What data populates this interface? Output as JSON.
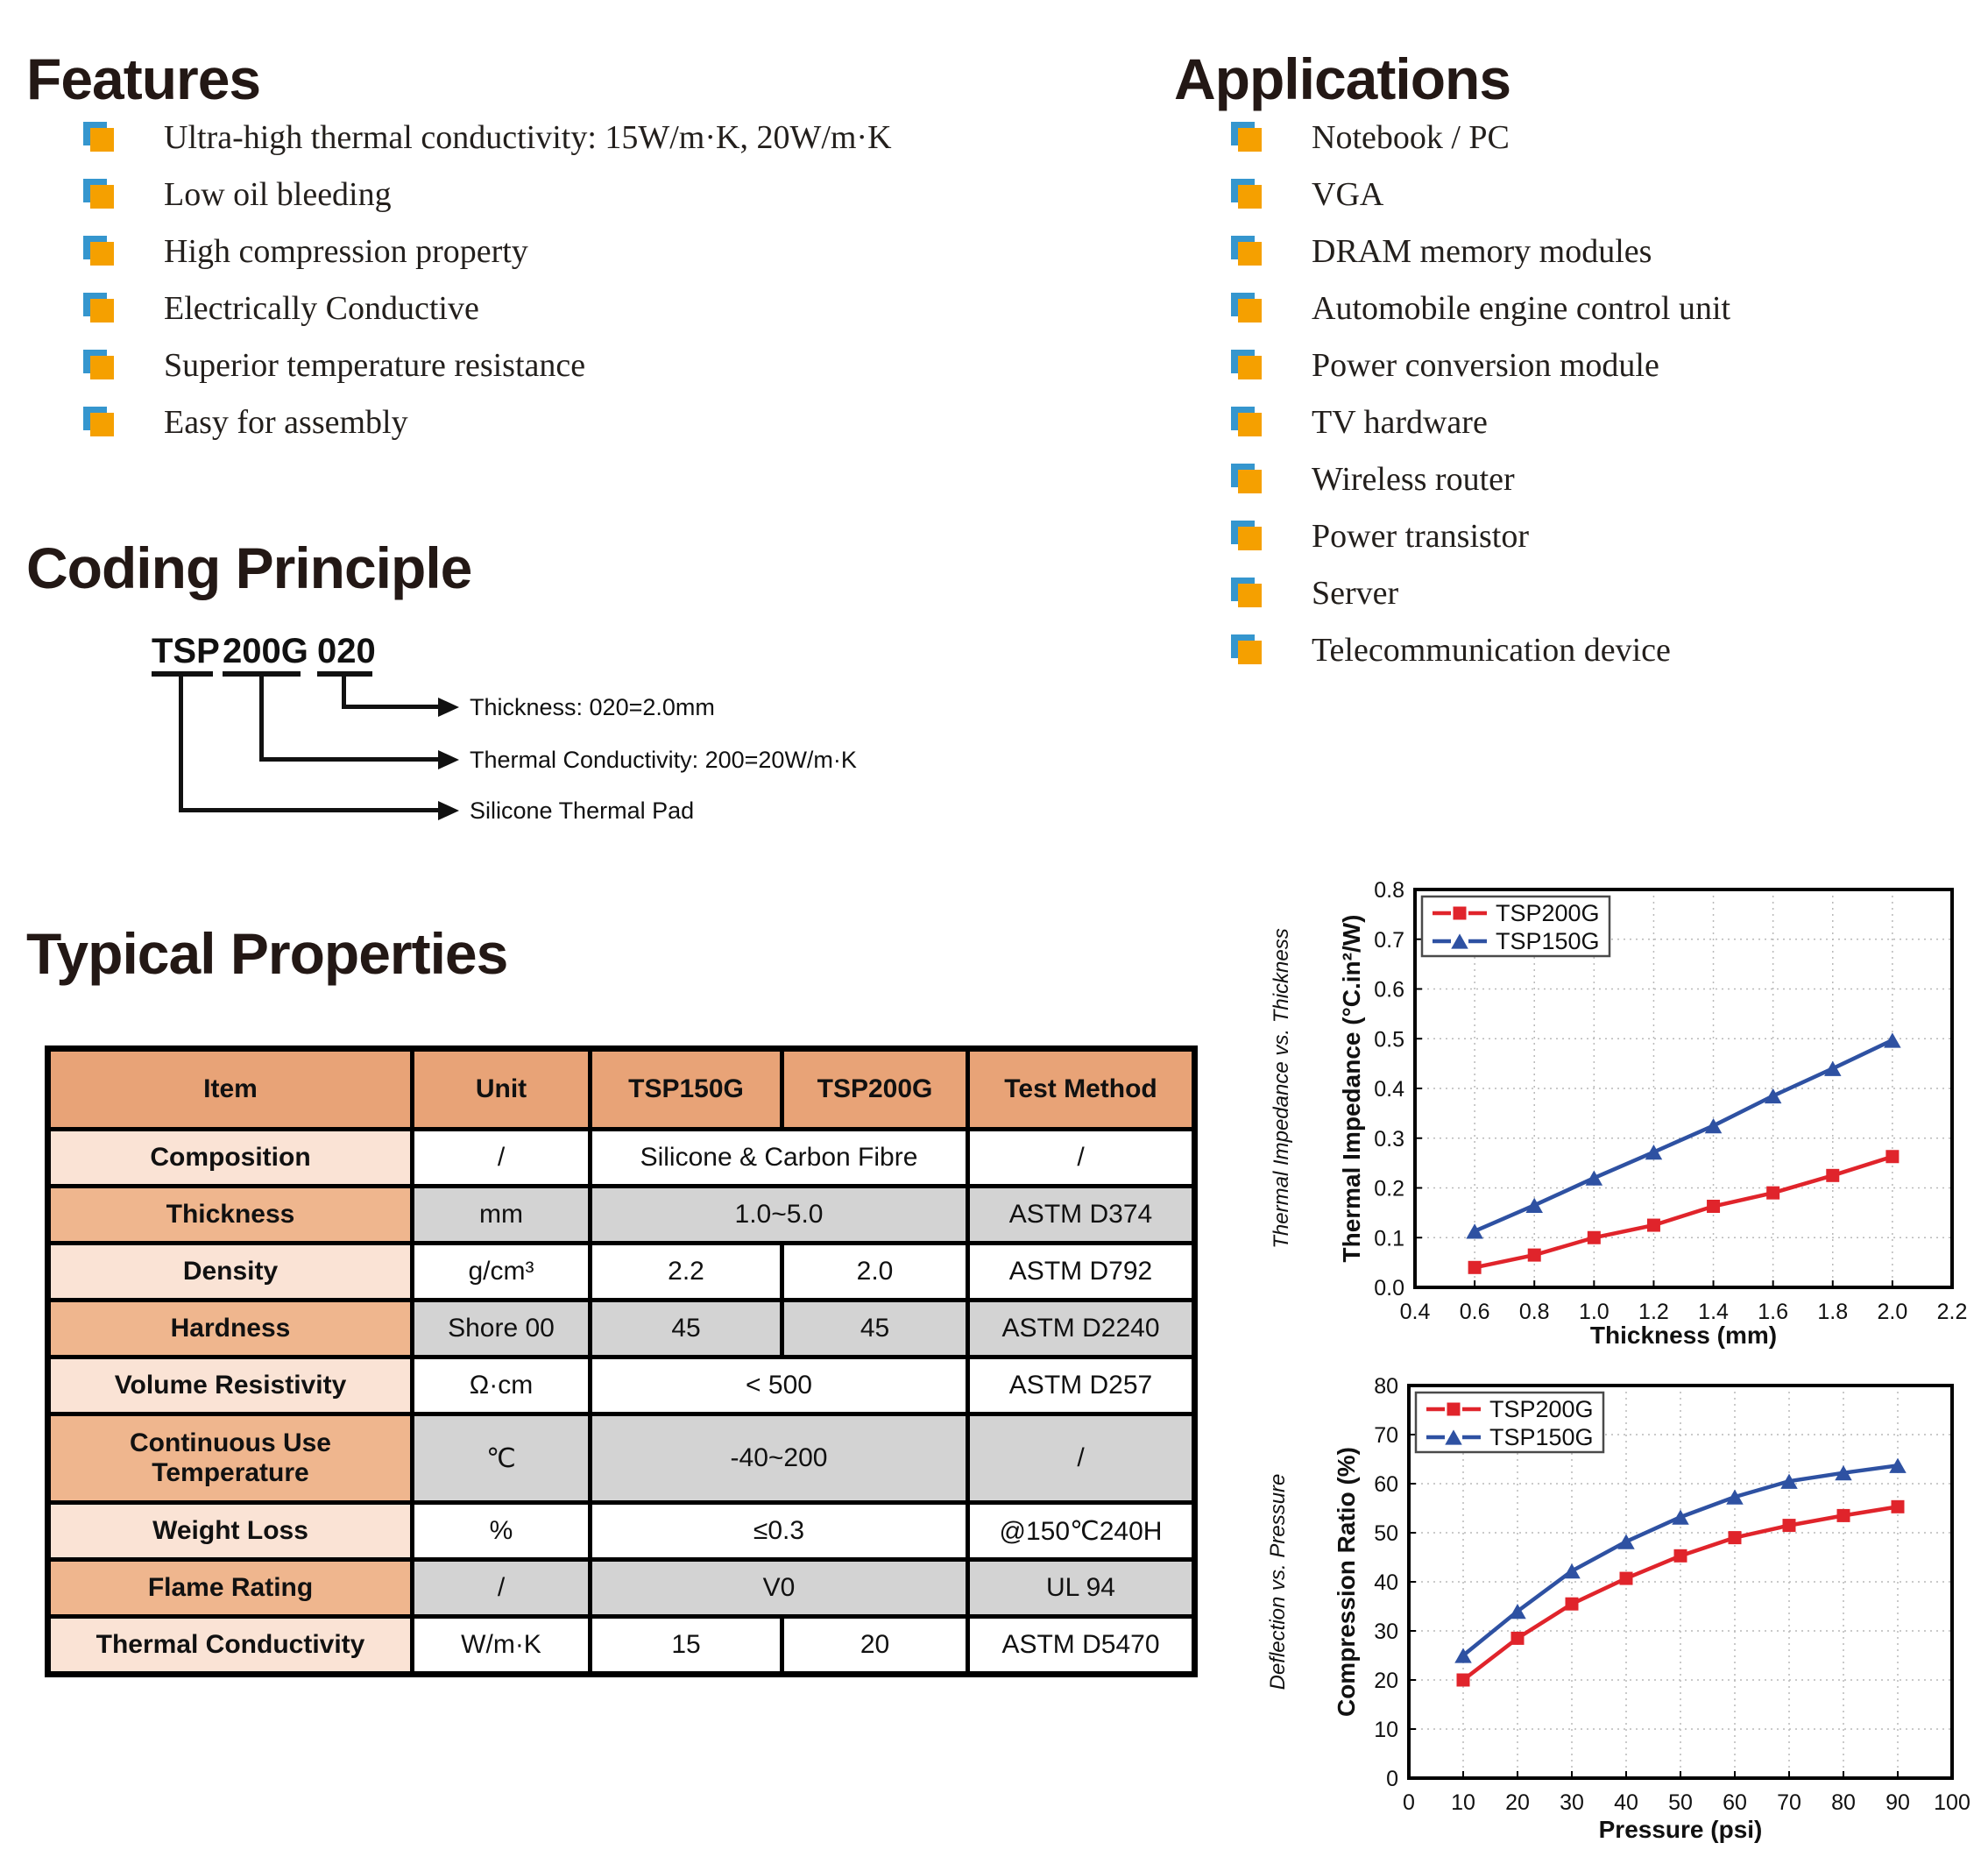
{
  "features": {
    "title": "Features",
    "items": [
      "Ultra-high thermal conductivity: 15W/m·K, 20W/m·K",
      "Low oil bleeding",
      "High compression property",
      "Electrically Conductive",
      "Superior temperature resistance",
      "Easy for assembly"
    ]
  },
  "applications": {
    "title": "Applications",
    "items": [
      "Notebook / PC",
      "VGA",
      "DRAM memory modules",
      "Automobile engine control unit",
      "Power conversion module",
      "TV hardware",
      "Wireless router",
      "Power transistor",
      "Server",
      "Telecommunication device"
    ]
  },
  "coding": {
    "title": "Coding Principle",
    "code_parts": [
      "TSP",
      "200G",
      "020"
    ],
    "labels": [
      "Silicone Thermal Pad",
      "Thermal Conductivity: 200=20W/m·K",
      "Thickness: 020=2.0mm"
    ]
  },
  "properties": {
    "title": "Typical Properties",
    "table": {
      "headers": [
        "Item",
        "Unit",
        "TSP150G",
        "TSP200G",
        "Test Method"
      ],
      "rows": [
        {
          "item": "Composition",
          "unit": "/",
          "span": "Silicone & Carbon Fibre",
          "method": "/",
          "shade": "pink"
        },
        {
          "item": "Thickness",
          "unit": "mm",
          "span": "1.0~5.0",
          "method": "ASTM D374",
          "shade": "orange"
        },
        {
          "item": "Density",
          "unit": "g/cm³",
          "tsp150g": "2.2",
          "tsp200g": "2.0",
          "method": "ASTM D792",
          "shade": "pink"
        },
        {
          "item": "Hardness",
          "unit": "Shore 00",
          "tsp150g": "45",
          "tsp200g": "45",
          "method": "ASTM D2240",
          "shade": "orange"
        },
        {
          "item": "Volume Resistivity",
          "unit": "Ω·cm",
          "span": "< 500",
          "method": "ASTM D257",
          "shade": "pink"
        },
        {
          "item": "Continuous Use Temperature",
          "unit": "℃",
          "span": "-40~200",
          "method": "/",
          "shade": "orange",
          "tall": true
        },
        {
          "item": "Weight Loss",
          "unit": "%",
          "span": "≤0.3",
          "method": "@150℃240H",
          "shade": "pink"
        },
        {
          "item": "Flame Rating",
          "unit": "/",
          "span": "V0",
          "method": "UL 94",
          "shade": "orange"
        },
        {
          "item": "Thermal Conductivity",
          "unit": "W/m·K",
          "tsp150g": "15",
          "tsp200g": "20",
          "method": "ASTM D5470",
          "shade": "pink"
        }
      ]
    }
  },
  "chart_data": [
    {
      "type": "line",
      "name": "Thermal Impedance vs. Thickness",
      "xlabel": "Thickness (mm)",
      "ylabel": "Thermal Impedance (°C.in²/W)",
      "xlim": [
        0.4,
        2.2
      ],
      "ylim": [
        0.0,
        0.8
      ],
      "xtick_step": 0.2,
      "ytick_step": 0.1,
      "x_decimals": 1,
      "y_decimals": 1,
      "grid": true,
      "legend_position": "top-left",
      "x": [
        0.6,
        0.8,
        1.0,
        1.2,
        1.4,
        1.6,
        1.8,
        2.0
      ],
      "series": [
        {
          "name": "TSP200G",
          "color": "#e0242b",
          "marker": "square",
          "values": [
            0.04,
            0.065,
            0.1,
            0.125,
            0.163,
            0.19,
            0.225,
            0.263
          ]
        },
        {
          "name": "TSP150G",
          "color": "#2e51a2",
          "marker": "triangle",
          "values": [
            0.113,
            0.165,
            0.22,
            0.272,
            0.325,
            0.385,
            0.44,
            0.497
          ]
        }
      ]
    },
    {
      "type": "line",
      "name": "Deflection vs. Pressure",
      "xlabel": "Pressure (psi)",
      "ylabel": "Compression Ratio (%)",
      "xlim": [
        0,
        100
      ],
      "ylim": [
        0,
        80
      ],
      "xtick_step": 10,
      "ytick_step": 10,
      "x_decimals": 0,
      "y_decimals": 0,
      "grid": true,
      "legend_position": "top-left",
      "x": [
        10,
        20,
        30,
        40,
        50,
        60,
        70,
        80,
        90
      ],
      "series": [
        {
          "name": "TSP200G",
          "color": "#e0242b",
          "marker": "square",
          "values": [
            20.0,
            28.5,
            35.5,
            40.7,
            45.3,
            49.0,
            51.5,
            53.5,
            55.3
          ]
        },
        {
          "name": "TSP150G",
          "color": "#2e51a2",
          "marker": "triangle",
          "values": [
            25.0,
            34.0,
            42.2,
            48.2,
            53.2,
            57.3,
            60.5,
            62.2,
            63.7
          ]
        }
      ]
    }
  ],
  "colors": {
    "heading": "#231815",
    "bullet_orange": "#f5a000",
    "bullet_blue": "#3596ce",
    "table_header_bg": "#e8a377",
    "table_item_orange": "#efb68e",
    "table_item_pink": "#fae3d5",
    "table_gray_cell": "#d3d3d3",
    "series_red": "#e0242b",
    "series_blue": "#2e51a2"
  }
}
